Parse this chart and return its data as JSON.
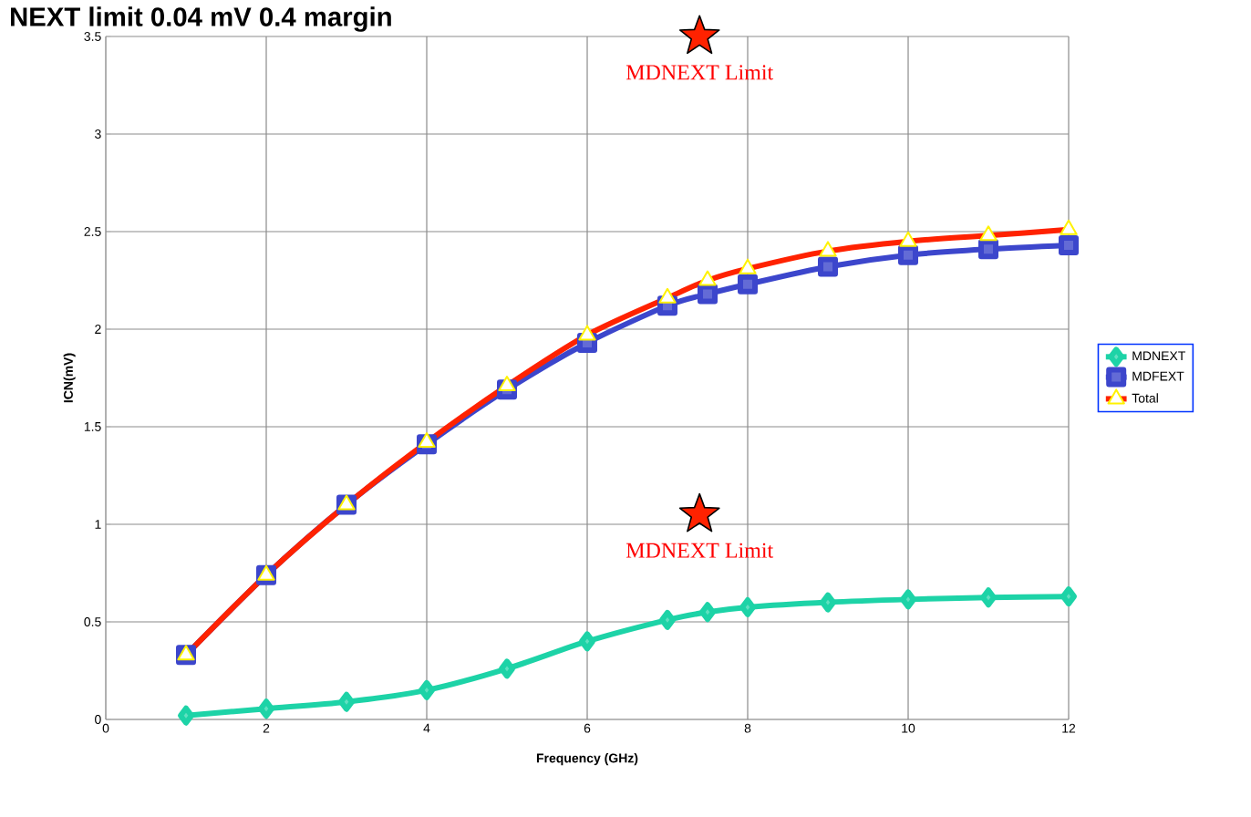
{
  "chart_data": {
    "type": "line",
    "title": "NEXT limit 0.04 mV 0.4 margin",
    "xlabel": "Frequency (GHz)",
    "ylabel": "ICN(mV)",
    "x": [
      1,
      2,
      3,
      4,
      5,
      6,
      7,
      7.5,
      8,
      9,
      10,
      11,
      12
    ],
    "series": [
      {
        "name": "MDNEXT",
        "color": "#1dd3a7",
        "marker": "diamond",
        "values": [
          0.02,
          0.055,
          0.09,
          0.15,
          0.26,
          0.4,
          0.51,
          0.55,
          0.575,
          0.6,
          0.615,
          0.625,
          0.63
        ]
      },
      {
        "name": "MDFEXT",
        "color": "#3c46cc",
        "marker": "square",
        "values": [
          0.33,
          0.74,
          1.1,
          1.41,
          1.69,
          1.93,
          2.12,
          2.18,
          2.23,
          2.32,
          2.38,
          2.41,
          2.43
        ]
      },
      {
        "name": "Total",
        "color": "#ff2200",
        "marker": "triangle",
        "values": [
          0.33,
          0.74,
          1.1,
          1.42,
          1.71,
          1.97,
          2.16,
          2.25,
          2.31,
          2.4,
          2.45,
          2.48,
          2.51
        ]
      },
      {
        "type": "scatter",
        "color": "#ff2200",
        "marker": "star",
        "x": [
          7.4,
          7.4
        ],
        "values": [
          3.5,
          1.05
        ]
      }
    ],
    "annotations": [
      "MDNEXT Limit",
      "MDNEXT Limit"
    ],
    "xlim": [
      0,
      12
    ],
    "xticks": [
      0,
      2,
      4,
      6,
      8,
      10,
      12
    ],
    "ylim": [
      0,
      3.5
    ],
    "yticks": [
      0,
      0.5,
      1,
      1.5,
      2,
      2.5,
      3,
      3.5
    ],
    "grid": true,
    "legend": "right",
    "line_style": "solid"
  }
}
